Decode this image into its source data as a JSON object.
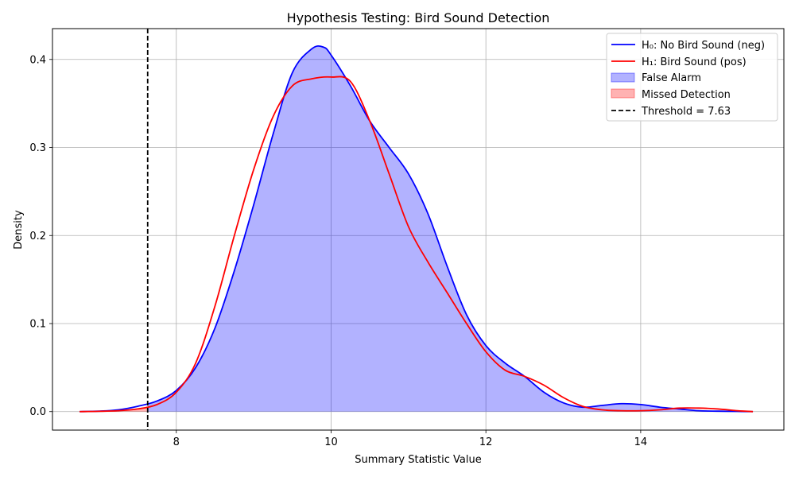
{
  "chart_data": {
    "type": "line",
    "title": "Hypothesis Testing: Bird Sound Detection",
    "xlabel": "Summary Statistic Value",
    "ylabel": "Density",
    "xlim": [
      6.4,
      15.85
    ],
    "ylim": [
      -0.021,
      0.435
    ],
    "x_ticks": [
      8,
      10,
      12,
      14
    ],
    "x_tick_labels": [
      "8",
      "10",
      "12",
      "14"
    ],
    "y_ticks": [
      0.0,
      0.1,
      0.2,
      0.3,
      0.4
    ],
    "y_tick_labels": [
      "0.0",
      "0.1",
      "0.2",
      "0.3",
      "0.4"
    ],
    "grid": true,
    "legend_position": "top-right",
    "threshold": 7.63,
    "series": [
      {
        "name": "H₀: No Bird Sound (neg)",
        "color": "#0000ff",
        "x": [
          6.75,
          7.0,
          7.25,
          7.5,
          7.75,
          8.0,
          8.25,
          8.5,
          8.75,
          9.0,
          9.25,
          9.5,
          9.75,
          9.9,
          10.0,
          10.25,
          10.5,
          10.75,
          11.0,
          11.25,
          11.5,
          11.75,
          12.0,
          12.25,
          12.5,
          12.75,
          13.0,
          13.25,
          13.5,
          13.75,
          14.0,
          14.25,
          14.5,
          14.75,
          15.0,
          15.25,
          15.45
        ],
        "y": [
          0.0,
          0.0005,
          0.002,
          0.006,
          0.012,
          0.024,
          0.05,
          0.095,
          0.16,
          0.235,
          0.315,
          0.385,
          0.412,
          0.414,
          0.405,
          0.37,
          0.33,
          0.3,
          0.27,
          0.225,
          0.165,
          0.11,
          0.075,
          0.055,
          0.04,
          0.022,
          0.01,
          0.005,
          0.007,
          0.009,
          0.008,
          0.005,
          0.003,
          0.001,
          0.0005,
          0.0002,
          0.0
        ]
      },
      {
        "name": "H₁: Bird Sound (pos)",
        "color": "#ff0000",
        "x": [
          6.75,
          7.0,
          7.25,
          7.5,
          7.75,
          8.0,
          8.25,
          8.5,
          8.75,
          9.0,
          9.25,
          9.5,
          9.75,
          10.0,
          10.25,
          10.5,
          10.75,
          11.0,
          11.25,
          11.5,
          11.75,
          12.0,
          12.25,
          12.5,
          12.75,
          13.0,
          13.25,
          13.5,
          13.75,
          14.0,
          14.25,
          14.5,
          14.75,
          15.0,
          15.25,
          15.45
        ],
        "y": [
          0.0,
          0.0003,
          0.001,
          0.003,
          0.008,
          0.022,
          0.055,
          0.12,
          0.2,
          0.275,
          0.335,
          0.37,
          0.378,
          0.38,
          0.375,
          0.33,
          0.27,
          0.21,
          0.17,
          0.135,
          0.1,
          0.068,
          0.047,
          0.04,
          0.03,
          0.016,
          0.006,
          0.002,
          0.001,
          0.001,
          0.002,
          0.004,
          0.004,
          0.003,
          0.001,
          0.0
        ]
      }
    ],
    "fills": [
      {
        "name": "False Alarm",
        "color": "#0000ff",
        "alpha": 0.3
      },
      {
        "name": "Missed Detection",
        "color": "#ff0000",
        "alpha": 0.3
      }
    ],
    "threshold_label": "Threshold = 7.63"
  }
}
